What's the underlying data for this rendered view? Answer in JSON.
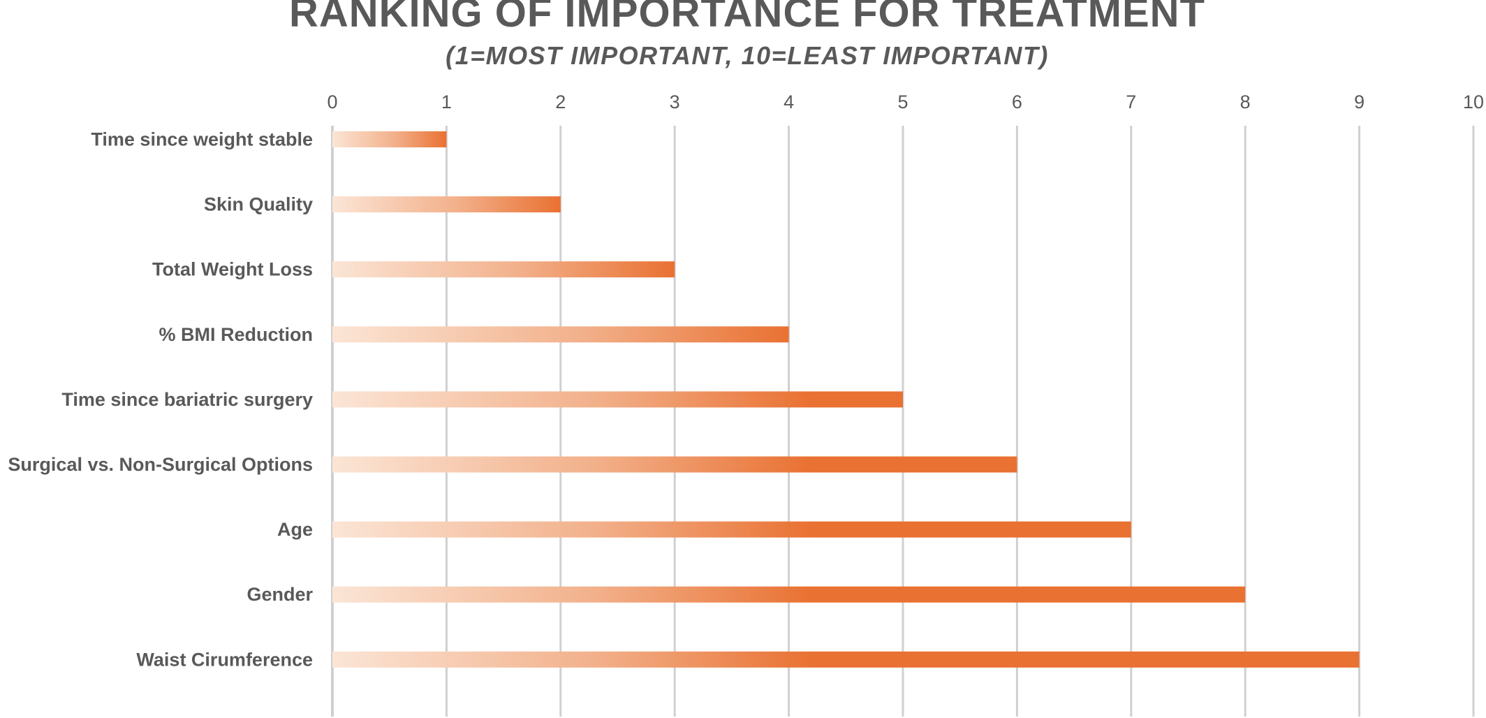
{
  "colors": {
    "bar": "#E97132",
    "bar_light": "#FBE5D6",
    "text": "#595959",
    "grid": "#D0D0D0"
  },
  "chart_data": {
    "type": "bar",
    "orientation": "horizontal",
    "title": "RANKING OF IMPORTANCE FOR TREATMENT",
    "subtitle": "(1=MOST IMPORTANT, 10=LEAST IMPORTANT)",
    "xlabel": "",
    "ylabel": "",
    "xlim": [
      0,
      10
    ],
    "x_ticks": [
      "0",
      "1",
      "2",
      "3",
      "4",
      "5",
      "6",
      "7",
      "8",
      "9",
      "10"
    ],
    "x_axis_position": "top",
    "grid": true,
    "legend": "none",
    "categories": [
      "Time since weight stable",
      "Skin Quality",
      "Total Weight Loss",
      "% BMI Reduction",
      "Time since bariatric surgery",
      "Surgical vs. Non-Surgical Options",
      "Age",
      "Gender",
      "Waist Cirumference"
    ],
    "values": [
      1,
      2,
      3,
      4,
      5,
      6,
      7,
      8,
      9
    ]
  }
}
